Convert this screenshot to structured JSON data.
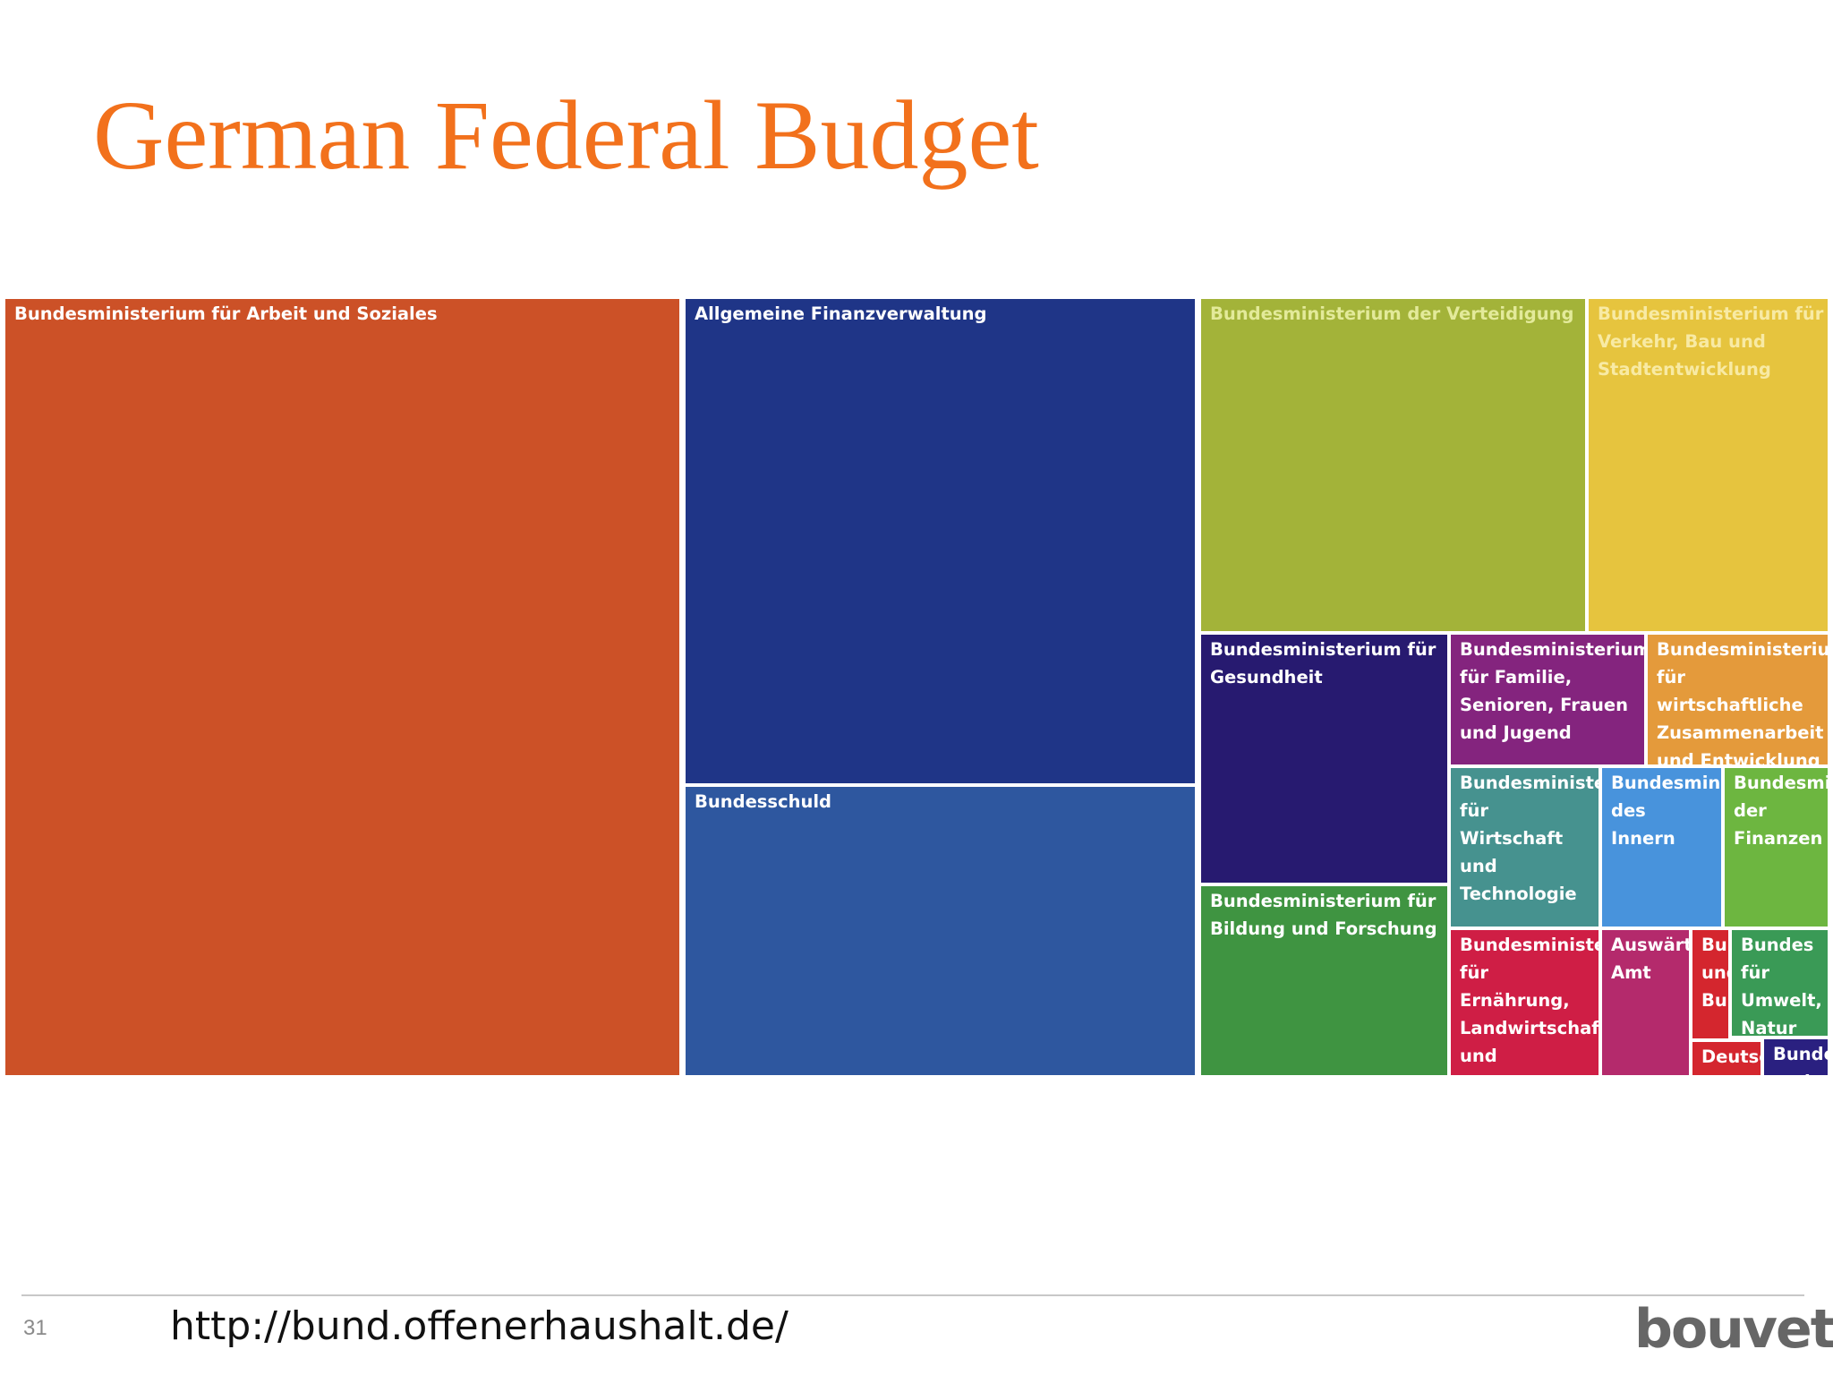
{
  "slide": {
    "title": "German Federal Budget",
    "page_number": "31",
    "source_url": "http://bund.offenerhaushalt.de/",
    "logo_text": "bouvet"
  },
  "colors": {
    "title": "#f2711c",
    "tile_border": "#ffffff"
  },
  "chart_data": {
    "type": "treemap",
    "title": "",
    "units": "",
    "values_note": "relative area shares estimated from tile sizes",
    "items": [
      {
        "label": "Bundesministerium für Arbeit und Soziales",
        "value": 32.4,
        "color": "#cc5127",
        "text_color": "#ffffff"
      },
      {
        "label": "Allgemeine Finanzverwaltung",
        "value": 15.4,
        "color": "#1f3587",
        "text_color": "#ffffff"
      },
      {
        "label": "Bundesschuld",
        "value": 9.2,
        "color": "#2e579f",
        "text_color": "#ffffff"
      },
      {
        "label": "Bundesministerium der Verteidigung",
        "value": 7.9,
        "color": "#a3b339",
        "text_color": "#e3ea9a"
      },
      {
        "label": "Bundesministerium für Verkehr, Bau und Stadtentwicklung",
        "value": 5.0,
        "color": "#e6c43e",
        "text_color": "#f8eaa4"
      },
      {
        "label": "Bundesministerium für Gesundheit",
        "value": 3.9,
        "color": "#271a70",
        "text_color": "#ffffff"
      },
      {
        "label": "Bundesministerium für Bildung und Forschung",
        "value": 2.9,
        "color": "#3f9441",
        "text_color": "#ffffff"
      },
      {
        "label": "Bundesministerium für Familie, Senioren, Frauen und Jugend",
        "value": 1.6,
        "color": "#84247e",
        "text_color": "#ffffff"
      },
      {
        "label": "Bundesministerium für wirtschaftliche Zusammenarbeit und Entwicklung",
        "value": 1.4,
        "color": "#e49a3b",
        "text_color": "#ffffff"
      },
      {
        "label": "Bundesministerium für Wirtschaft und Technologie",
        "value": 1.6,
        "color": "#46928f",
        "text_color": "#ffffff"
      },
      {
        "label": "Bundesministerium des Innern",
        "value": 1.5,
        "color": "#4893dc",
        "text_color": "#ffffff"
      },
      {
        "label": "Bundesministerium der Finanzen",
        "value": 1.5,
        "color": "#6db640",
        "text_color": "#ffffff"
      },
      {
        "label": "Bundesministerium für Ernährung, Landwirtschaft und Verbraucherschutz",
        "value": 1.4,
        "color": "#cf1e45",
        "text_color": "#ffffff"
      },
      {
        "label": "Auswärtiges Amt",
        "value": 0.9,
        "color": "#b42a6c",
        "text_color": "#ffffff"
      },
      {
        "label": "Bundes und Bundes",
        "value": 0.5,
        "color": "#d4262e",
        "text_color": "#ffffff"
      },
      {
        "label": "Deutsc",
        "value": 0.3,
        "color": "#d4262e",
        "text_color": "#ffffff"
      },
      {
        "label": "Bundes für Umwelt, Natur",
        "value": 0.5,
        "color": "#3a9a56",
        "text_color": "#ffffff"
      },
      {
        "label": "Bundes und",
        "value": 0.2,
        "color": "#2a2080",
        "text_color": "#ffffff"
      }
    ]
  }
}
